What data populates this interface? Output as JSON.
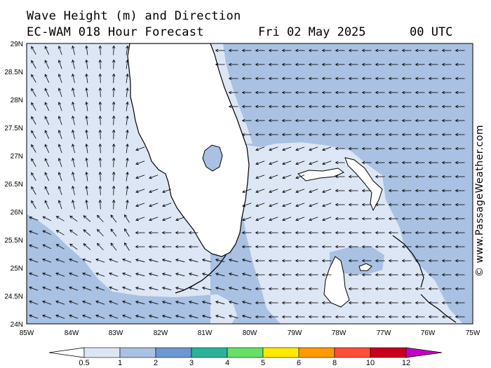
{
  "header": {
    "title": "Wave Height (m) and Direction",
    "model": "EC-WAM 018 Hour Forecast",
    "date": "Fri 02 May 2025",
    "time": "00 UTC"
  },
  "credit": "© www.PassageWeather.com",
  "map": {
    "lon_range": [
      -85,
      -75
    ],
    "lat_range": [
      24,
      29
    ],
    "lon_ticks": [
      "85W",
      "84W",
      "83W",
      "82W",
      "81W",
      "80W",
      "79W",
      "78W",
      "77W",
      "76W",
      "75W"
    ],
    "lat_ticks": [
      "29N",
      "28.5N",
      "28N",
      "27.5N",
      "27N",
      "26.5N",
      "26N",
      "25.5N",
      "25N",
      "24.5N",
      "24N"
    ],
    "land_color": "#ffffff",
    "coast_color": "#000000",
    "arrow_color": "#000000"
  },
  "legend": {
    "labels": [
      "0.5",
      "1",
      "2",
      "3",
      "4",
      "5",
      "6",
      "8",
      "10",
      "12"
    ],
    "colors": [
      "#dde6f5",
      "#a9c1e2",
      "#6c97d0",
      "#2bb39a",
      "#66e066",
      "#ffea00",
      "#ff9a00",
      "#ff4f3a",
      "#c8001e",
      "#c400c8"
    ]
  }
}
